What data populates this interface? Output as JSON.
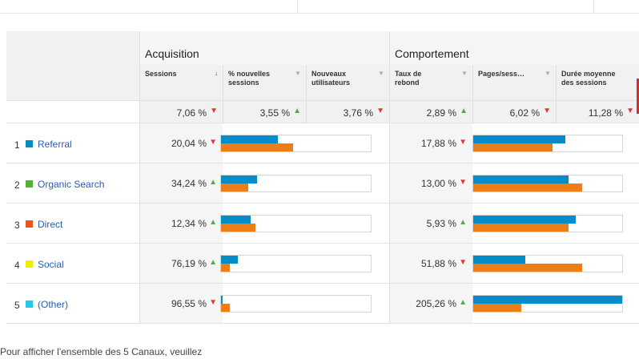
{
  "groups": {
    "acquisition": "Acquisition",
    "comportement": "Comportement"
  },
  "columns": [
    {
      "label": "Sessions",
      "sort": "↓"
    },
    {
      "label": "% nouvelles sessions",
      "sort": "▼"
    },
    {
      "label": "Nouveaux utilisateurs",
      "sort": "▼"
    },
    {
      "label": "Taux de rebond",
      "sort": "▼"
    },
    {
      "label": "Pages/sess…",
      "sort": "▼"
    },
    {
      "label": "Durée moyenne des sessions",
      "sort": ""
    }
  ],
  "totals": [
    {
      "value": "7,06 %",
      "trend": "down"
    },
    {
      "value": "3,55 %",
      "trend": "up"
    },
    {
      "value": "3,76 %",
      "trend": "down"
    },
    {
      "value": "2,89 %",
      "trend": "up"
    },
    {
      "value": "6,02 %",
      "trend": "down"
    },
    {
      "value": "11,28 %",
      "trend": "down"
    }
  ],
  "rows": [
    {
      "num": "1",
      "name": "Referral",
      "color": "#058dc7",
      "sessions": "20,04 %",
      "sessions_trend": "down",
      "acq_bar": {
        "blue": 0.38,
        "orange": 0.48
      },
      "bounce": "17,88 %",
      "bounce_trend": "down",
      "beh_bar": {
        "blue": 0.62,
        "orange": 0.53
      }
    },
    {
      "num": "2",
      "name": "Organic Search",
      "color": "#50b432",
      "sessions": "34,24 %",
      "sessions_trend": "up",
      "acq_bar": {
        "blue": 0.24,
        "orange": 0.18
      },
      "bounce": "13,00 %",
      "bounce_trend": "down",
      "beh_bar": {
        "blue": 0.64,
        "orange": 0.73
      }
    },
    {
      "num": "3",
      "name": "Direct",
      "color": "#ed561b",
      "sessions": "12,34 %",
      "sessions_trend": "up",
      "acq_bar": {
        "blue": 0.2,
        "orange": 0.23
      },
      "bounce": "5,93 %",
      "bounce_trend": "up",
      "beh_bar": {
        "blue": 0.69,
        "orange": 0.64
      }
    },
    {
      "num": "4",
      "name": "Social",
      "color": "#edef00",
      "sessions": "76,19 %",
      "sessions_trend": "up",
      "acq_bar": {
        "blue": 0.11,
        "orange": 0.06
      },
      "bounce": "51,88 %",
      "bounce_trend": "down",
      "beh_bar": {
        "blue": 0.35,
        "orange": 0.73
      }
    },
    {
      "num": "5",
      "name": "(Other)",
      "color": "#24cbe5",
      "sessions": "96,55 %",
      "sessions_trend": "down",
      "acq_bar": {
        "blue": 0.01,
        "orange": 0.06
      },
      "bounce": "205,26 %",
      "bounce_trend": "up",
      "beh_bar": {
        "blue": 1.0,
        "orange": 0.32
      }
    }
  ],
  "footer": "Pour afficher l'ensemble des 5 Canaux, veuillez"
}
